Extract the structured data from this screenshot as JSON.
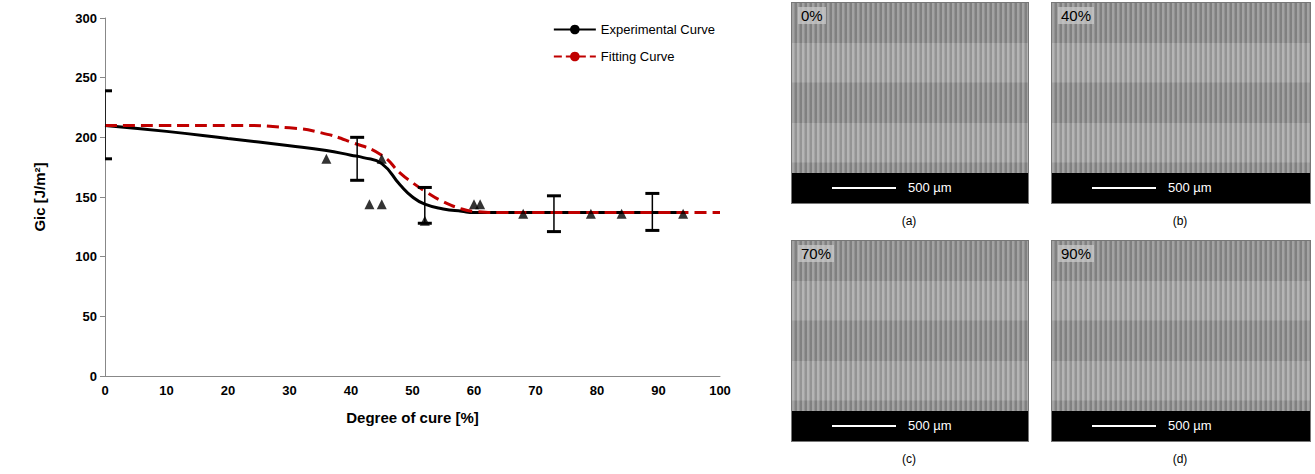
{
  "chart_data": {
    "type": "line",
    "x_label": "Degree of cure [%]",
    "y_label": "Gic [J/m²]",
    "xlim": [
      0,
      100
    ],
    "xticks": [
      0,
      10,
      20,
      30,
      40,
      50,
      60,
      70,
      80,
      90,
      100
    ],
    "ylim": [
      0,
      300
    ],
    "yticks": [
      0,
      50,
      100,
      150,
      200,
      250,
      300
    ],
    "grid": false,
    "legend": "upper right",
    "series": [
      {
        "name": "Experimental Curve",
        "type": "line",
        "color": "#000000",
        "line_style": "solid",
        "marker": "none",
        "x": [
          0,
          10,
          20,
          30,
          36,
          40,
          42,
          45,
          48,
          50,
          52,
          55,
          58,
          60,
          65,
          70,
          80,
          90,
          93
        ],
        "values": [
          210,
          205,
          199,
          193,
          189,
          185,
          183,
          178,
          160,
          150,
          144,
          140,
          138,
          137,
          137,
          137,
          137,
          137,
          137
        ]
      },
      {
        "name": "Fitting Curve",
        "type": "line",
        "color": "#c00000",
        "line_style": "dashed",
        "marker": "none",
        "x": [
          0,
          10,
          20,
          30,
          35,
          40,
          45,
          48,
          50,
          52,
          55,
          58,
          60,
          65,
          70,
          80,
          90,
          100
        ],
        "values": [
          210,
          210,
          210,
          208,
          204,
          196,
          185,
          170,
          162,
          155,
          146,
          140,
          138,
          137,
          137,
          137,
          137,
          137
        ]
      },
      {
        "type": "scatter",
        "color": "#000000",
        "marker": "triangle",
        "x": [
          36,
          43,
          45,
          45,
          52,
          60,
          61,
          68,
          79,
          84,
          94
        ],
        "values": [
          182,
          144,
          182,
          144,
          130,
          144,
          144,
          136,
          136,
          136,
          136
        ]
      }
    ],
    "error_bars": [
      {
        "x": 0,
        "value": 210,
        "low": 182,
        "high": 239
      },
      {
        "x": 41,
        "value": 182,
        "low": 164,
        "high": 200
      },
      {
        "x": 52,
        "value": 143,
        "low": 128,
        "high": 158
      },
      {
        "x": 73,
        "value": 136,
        "low": 121,
        "high": 151
      },
      {
        "x": 89,
        "value": 137,
        "low": 122,
        "high": 153
      }
    ]
  },
  "images": [
    {
      "label": "0%",
      "scale_bar": "500 µm",
      "caption": "(a)"
    },
    {
      "label": "40%",
      "scale_bar": "500 µm",
      "caption": "(b)"
    },
    {
      "label": "70%",
      "scale_bar": "500 µm",
      "caption": "(c)"
    },
    {
      "label": "90%",
      "scale_bar": "500 µm",
      "caption": "(d)"
    }
  ]
}
